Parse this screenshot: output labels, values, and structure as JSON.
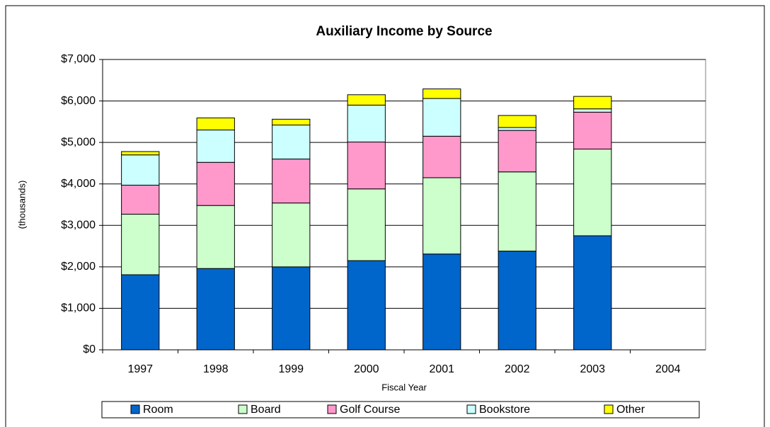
{
  "chart_data": {
    "type": "bar",
    "stacked": true,
    "title": "Auxiliary Income by Source",
    "xlabel": "Fiscal Year",
    "ylabel": "(thousands)",
    "categories": [
      "1997",
      "1998",
      "1999",
      "2000",
      "2001",
      "2002",
      "2003",
      "2004"
    ],
    "series": [
      {
        "name": "Room",
        "color": "#0066cc",
        "values": [
          1810,
          1960,
          2000,
          2150,
          2310,
          2380,
          2750,
          null
        ]
      },
      {
        "name": "Board",
        "color": "#ccffcc",
        "values": [
          1460,
          1520,
          1540,
          1730,
          1840,
          1910,
          2090,
          null
        ]
      },
      {
        "name": "Golf Course",
        "color": "#ff99cc",
        "values": [
          700,
          1040,
          1060,
          1130,
          1000,
          1000,
          890,
          null
        ]
      },
      {
        "name": "Bookstore",
        "color": "#ccffff",
        "values": [
          730,
          780,
          820,
          890,
          910,
          70,
          80,
          null
        ]
      },
      {
        "name": "Other",
        "color": "#ffff00",
        "values": [
          80,
          290,
          140,
          250,
          230,
          290,
          300,
          null
        ]
      }
    ],
    "ylim": [
      0,
      7000
    ],
    "yticks": [
      {
        "value": 0,
        "label": "$0"
      },
      {
        "value": 1000,
        "label": "$1,000"
      },
      {
        "value": 2000,
        "label": "$2,000"
      },
      {
        "value": 3000,
        "label": "$3,000"
      },
      {
        "value": 4000,
        "label": "$4,000"
      },
      {
        "value": 5000,
        "label": "$5,000"
      },
      {
        "value": 6000,
        "label": "$6,000"
      },
      {
        "value": 7000,
        "label": "$7,000"
      }
    ],
    "grid": true,
    "legend": "bottom"
  }
}
